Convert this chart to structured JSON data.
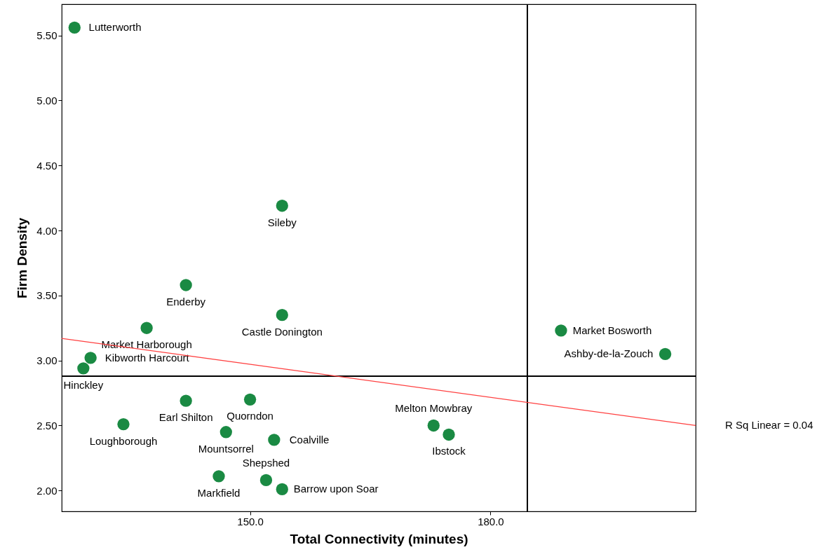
{
  "chart_data": {
    "type": "scatter",
    "xlabel": "Total Connectivity (minutes)",
    "ylabel": "Firm Density",
    "xlim": [
      126.5,
      205.6
    ],
    "ylim": [
      1.84,
      5.74
    ],
    "xticks": [
      {
        "value": 150,
        "label": "150.0"
      },
      {
        "value": 180,
        "label": "180.0"
      }
    ],
    "yticks": [
      {
        "value": 2,
        "label": "2.00"
      },
      {
        "value": 2.5,
        "label": "2.50"
      },
      {
        "value": 3,
        "label": "3.00"
      },
      {
        "value": 3.5,
        "label": "3.50"
      },
      {
        "value": 4,
        "label": "4.00"
      },
      {
        "value": 4.5,
        "label": "4.50"
      },
      {
        "value": 5,
        "label": "5.00"
      },
      {
        "value": 5.5,
        "label": "5.50"
      }
    ],
    "grid": false,
    "ref_lines": [
      {
        "axis": "x",
        "value": 184.6,
        "color": "#000000"
      },
      {
        "axis": "y",
        "value": 2.88,
        "color": "#000000"
      }
    ],
    "annotations": [
      {
        "text": "R Sq Linear = 0.04",
        "x": 205.6,
        "y": 2.5
      }
    ],
    "series": [
      {
        "marker": "circle",
        "color": "#1a8a43",
        "x": [
          128.1,
          154.0,
          142.0,
          154.0,
          137.1,
          130.1,
          129.2,
          188.8,
          201.8,
          142.0,
          150.0,
          134.2,
          147.0,
          153.0,
          172.9,
          174.8,
          146.1,
          152.0,
          154.0
        ],
        "values": [
          5.56,
          4.19,
          3.58,
          3.35,
          3.25,
          3.02,
          2.94,
          3.23,
          3.05,
          2.69,
          2.7,
          2.51,
          2.45,
          2.39,
          2.5,
          2.43,
          2.11,
          2.08,
          2.01
        ],
        "value_labels": [
          "Lutterworth",
          "Sileby",
          "Enderby",
          "Castle Donington",
          "Market Harborough",
          "Kibworth Harcourt",
          "Hinckley",
          "Market Bosworth",
          "Ashby-de-la-Zouch",
          "Earl Shilton",
          "Quorndon",
          "Loughborough",
          "Mountsorrel",
          "Coalville",
          "Melton Mowbray",
          "Ibstock",
          "Markfield",
          "Shepshed",
          "Barrow upon Soar"
        ]
      },
      {
        "type": "line",
        "color": "#ff4040",
        "x": [
          126.5,
          205.6
        ],
        "values": [
          3.17,
          2.5
        ]
      }
    ]
  }
}
